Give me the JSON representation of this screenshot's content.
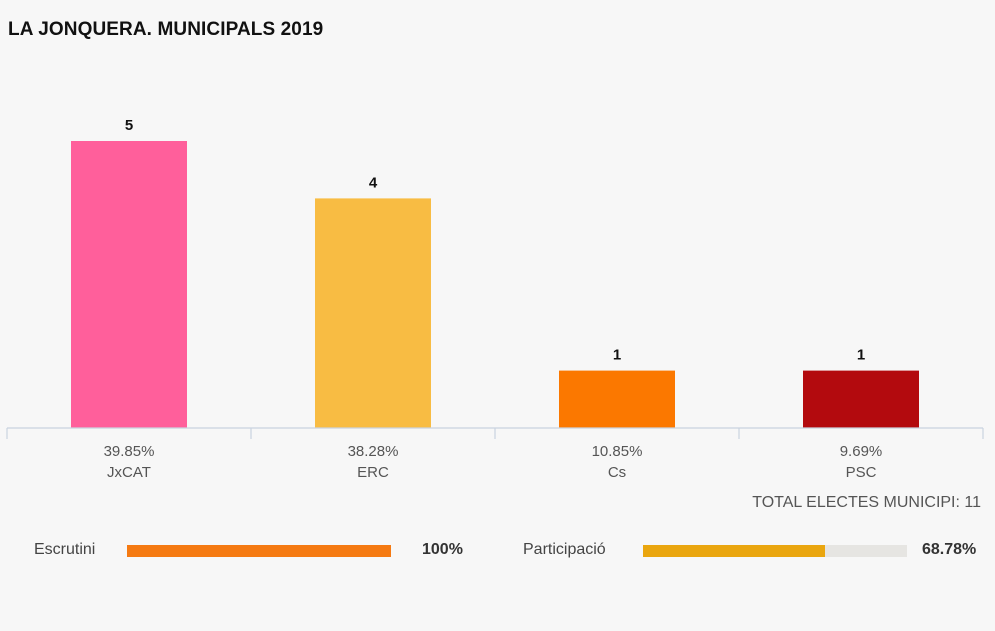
{
  "title": "LA JONQUERA. MUNICIPALS 2019",
  "chart_data": {
    "type": "bar",
    "title": "LA JONQUERA. MUNICIPALS 2019",
    "categories": [
      "JxCAT",
      "ERC",
      "Cs",
      "PSC"
    ],
    "values": [
      5,
      4,
      1,
      1
    ],
    "percentages": [
      "39.85%",
      "38.28%",
      "10.85%",
      "9.69%"
    ],
    "colors": [
      "#ff5f9b",
      "#f8bc43",
      "#fb7800",
      "#b30a0e"
    ],
    "ylim": [
      0,
      5
    ],
    "xlabel": "",
    "ylabel": "",
    "grid": false
  },
  "total_label": "TOTAL ELECTES MUNICIPI: 11",
  "meters": {
    "scrutiny": {
      "label": "Escrutini",
      "value_text": "100%",
      "fraction": 1.0,
      "color": "#f57a12"
    },
    "participation": {
      "label": "Participació",
      "value_text": "68.78%",
      "fraction": 0.6878,
      "color": "#eaa60f"
    }
  }
}
